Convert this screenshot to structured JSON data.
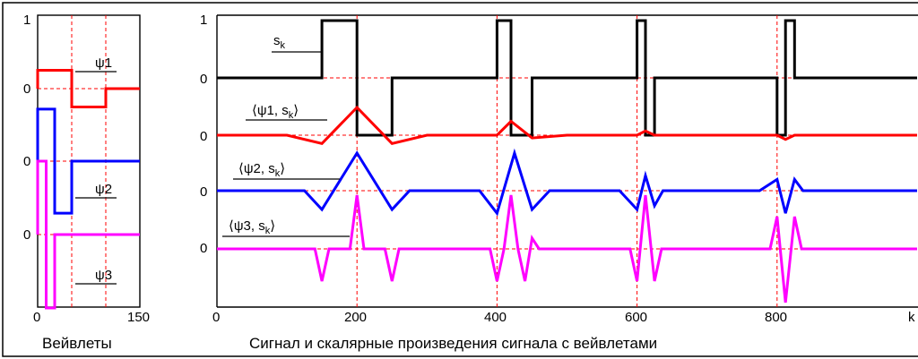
{
  "left_panel": {
    "xlabel": "Вейвлеты",
    "x_ticks": [
      "0",
      "150"
    ],
    "y_ticks": [
      "1",
      "0",
      "0",
      "0"
    ]
  },
  "right_panel": {
    "xlabel": "Сигнал и скалярные произведения сигнала с вейвлетами",
    "x_ticks": [
      "0",
      "200",
      "400",
      "600",
      "800",
      "k"
    ],
    "y_ticks": [
      "1",
      "0",
      "0",
      "0",
      "0"
    ]
  },
  "colors": {
    "black": "#000000",
    "red": "#ff0000",
    "blue": "#0000ff",
    "magenta": "#ff00ff",
    "guide": "#ff0000"
  },
  "chart_data": [
    {
      "type": "line",
      "title": "",
      "xlabel": "Вейвлеты",
      "ylabel": "",
      "xlim": [
        0,
        150
      ],
      "x_tick_labels": [
        "0",
        "150"
      ],
      "y_tick_labels": [
        "1",
        "0",
        "0",
        "0"
      ],
      "vertical_guides": [
        50,
        100
      ],
      "series": [
        {
          "name": "ψ1",
          "color": "#ff0000",
          "x": [
            0,
            0,
            50,
            50,
            100,
            100,
            150
          ],
          "y": [
            0,
            0.5,
            0.5,
            -0.5,
            -0.5,
            0,
            0
          ]
        },
        {
          "name": "ψ2",
          "color": "#0000ff",
          "x": [
            0,
            0,
            25,
            25,
            50,
            50,
            150
          ],
          "y": [
            0,
            0.7,
            0.7,
            -0.7,
            -0.7,
            0,
            0
          ]
        },
        {
          "name": "ψ3",
          "color": "#ff00ff",
          "x": [
            0,
            0,
            12.5,
            12.5,
            25,
            25,
            150
          ],
          "y": [
            0,
            1,
            1,
            -1,
            -1,
            0,
            0
          ]
        }
      ]
    },
    {
      "type": "line",
      "title": "",
      "xlabel": "Сигнал и скалярные произведения сигнала с вейвлетами",
      "ylabel": "",
      "xlim": [
        0,
        1000
      ],
      "x_tick_labels": [
        "0",
        "200",
        "400",
        "600",
        "800",
        "k"
      ],
      "y_tick_labels": [
        "1",
        "0",
        "0",
        "0",
        "0"
      ],
      "vertical_guides": [
        200,
        400,
        600,
        800
      ],
      "series": [
        {
          "name": "sk",
          "color": "#000000",
          "x": [
            0,
            150,
            150,
            200,
            200,
            250,
            250,
            400,
            400,
            420,
            420,
            450,
            450,
            600,
            600,
            612,
            612,
            625,
            625,
            800,
            800,
            812,
            812,
            825,
            825,
            1000
          ],
          "y": [
            0,
            0,
            1,
            1,
            -1,
            -1,
            0,
            0,
            1,
            1,
            -1,
            -1,
            0,
            0,
            1,
            1,
            -1,
            -1,
            0,
            0,
            -1,
            -1,
            1,
            1,
            0,
            0
          ]
        },
        {
          "name": "⟨ψ1, sk⟩",
          "color": "#ff0000",
          "x": [
            0,
            100,
            150,
            200,
            250,
            300,
            400,
            420,
            450,
            500,
            600,
            612,
            625,
            700,
            800,
            812,
            825,
            900,
            1000
          ],
          "y": [
            0,
            0,
            -0.3,
            1,
            -0.3,
            0,
            0,
            0.5,
            -0.1,
            0,
            0,
            0.15,
            0,
            0,
            0,
            -0.15,
            0,
            0,
            0
          ]
        },
        {
          "name": "⟨ψ2, sk⟩",
          "color": "#0000ff",
          "x": [
            0,
            125,
            150,
            200,
            250,
            275,
            375,
            400,
            425,
            450,
            475,
            575,
            600,
            612,
            625,
            637,
            775,
            800,
            812,
            825,
            837,
            1000
          ],
          "y": [
            0,
            0,
            -0.5,
            1,
            -0.5,
            0,
            0,
            -0.6,
            1,
            -0.5,
            0,
            0,
            -0.5,
            0.4,
            -0.4,
            0,
            0,
            0.3,
            -0.6,
            0.3,
            0,
            0
          ]
        },
        {
          "name": "⟨ψ3, sk⟩",
          "color": "#ff00ff",
          "x": [
            0,
            140,
            150,
            160,
            190,
            200,
            210,
            240,
            250,
            260,
            390,
            400,
            410,
            420,
            430,
            440,
            450,
            460,
            590,
            600,
            612,
            625,
            635,
            790,
            800,
            812,
            825,
            835,
            1000
          ],
          "y": [
            0,
            0,
            -0.6,
            0,
            0,
            1,
            0,
            0,
            -0.6,
            0,
            0,
            -0.6,
            0,
            1,
            0,
            -0.6,
            0.2,
            0,
            0,
            -0.6,
            1,
            -0.6,
            0,
            0,
            0.6,
            -1,
            0.6,
            0,
            0
          ]
        }
      ]
    }
  ]
}
